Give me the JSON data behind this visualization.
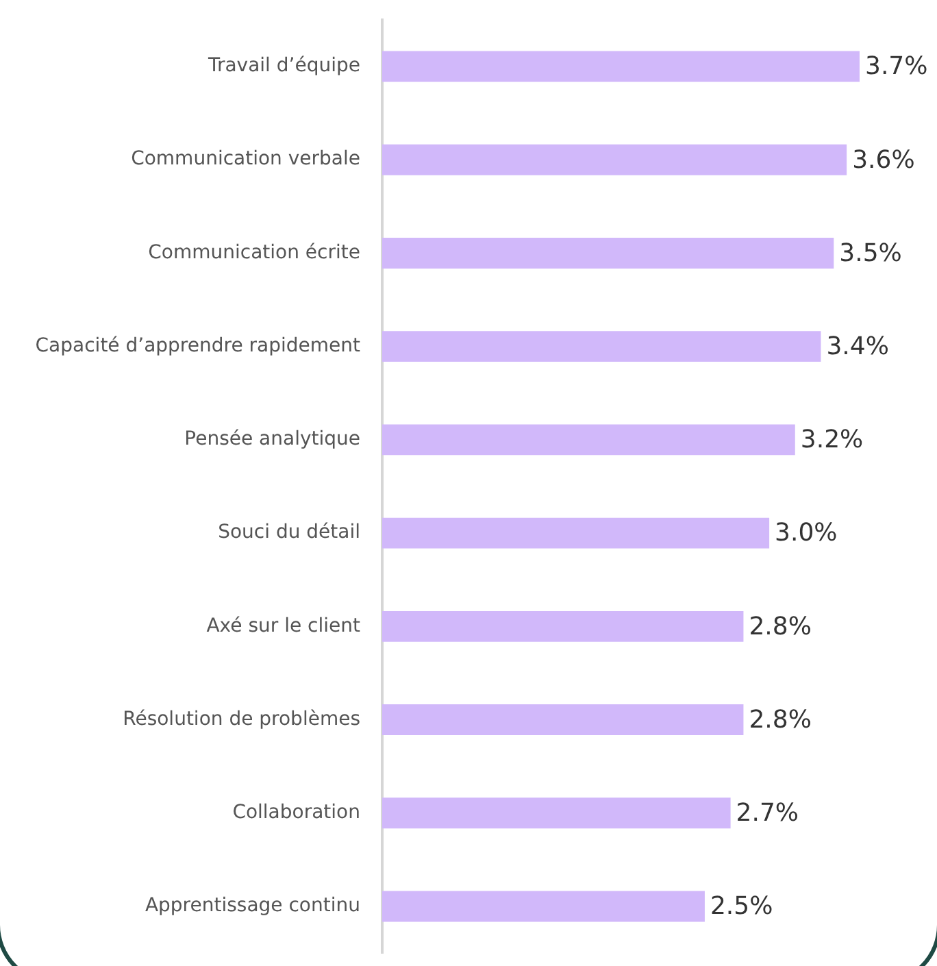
{
  "chart_data": {
    "type": "bar",
    "orientation": "horizontal",
    "categories": [
      "Travail d’équipe",
      "Communication verbale",
      "Communication écrite",
      "Capacité d’apprendre rapidement",
      "Pensée analytique",
      "Souci du détail",
      "Axé sur le client",
      "Résolution de problèmes",
      "Collaboration",
      "Apprentissage continu"
    ],
    "values": [
      3.7,
      3.6,
      3.5,
      3.4,
      3.2,
      3.0,
      2.8,
      2.8,
      2.7,
      2.5
    ],
    "value_labels": [
      "3.7%",
      "3.6%",
      "3.5%",
      "3.4%",
      "3.2%",
      "3.0%",
      "2.8%",
      "2.8%",
      "2.7%",
      "2.5%"
    ],
    "color": "#d1b8fa",
    "xlim": [
      0,
      4.3
    ],
    "grid": false,
    "legend": false,
    "tick_labels": "y"
  }
}
